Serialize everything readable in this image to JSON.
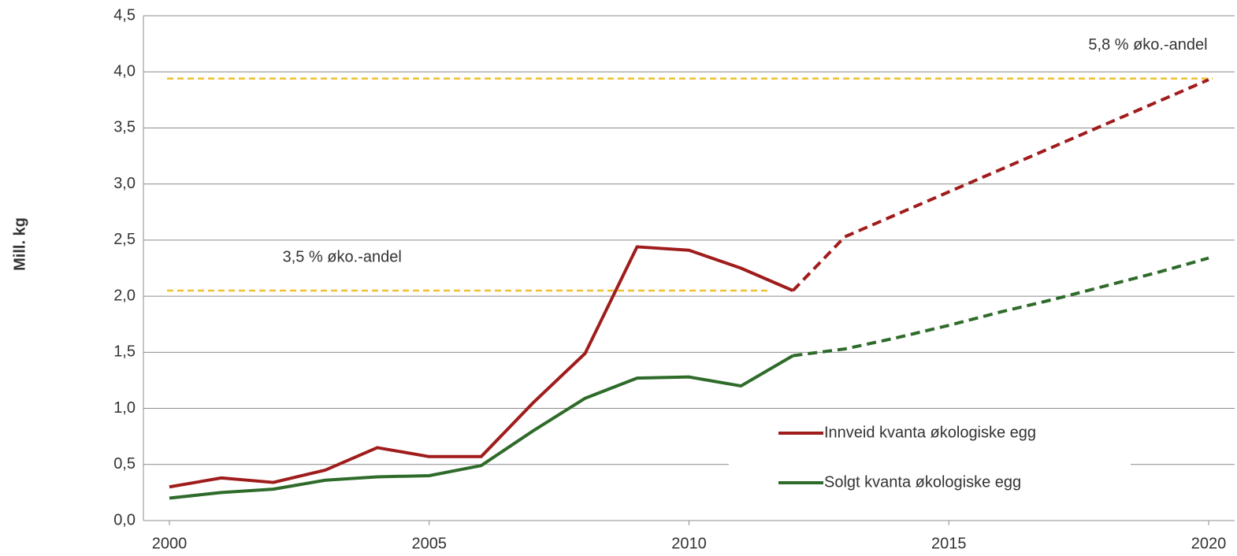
{
  "chart_data": {
    "type": "line",
    "y_label": "Mill. kg",
    "x": [
      2000,
      2001,
      2002,
      2003,
      2004,
      2005,
      2006,
      2007,
      2008,
      2009,
      2010,
      2011,
      2012,
      2013,
      2014,
      2015,
      2016,
      2017,
      2018,
      2019,
      2020
    ],
    "series": [
      {
        "name": "Innveid kvanta økologiske egg",
        "color": "#a01c1c",
        "dashed": false,
        "values": [
          0.3,
          0.38,
          0.34,
          0.45,
          0.65,
          0.57,
          0.57,
          1.05,
          1.49,
          2.44,
          2.41,
          2.25,
          2.05,
          null,
          null,
          null,
          null,
          null,
          null,
          null,
          null
        ]
      },
      {
        "name": "Solgt kvanta økologiske egg",
        "color": "#2e6b2a",
        "dashed": false,
        "values": [
          0.2,
          0.25,
          0.28,
          0.36,
          0.39,
          0.4,
          0.49,
          0.8,
          1.09,
          1.27,
          1.28,
          1.2,
          1.47,
          null,
          null,
          null,
          null,
          null,
          null,
          null,
          null
        ]
      },
      {
        "color": "#a01c1c",
        "dashed": true,
        "values": [
          null,
          null,
          null,
          null,
          null,
          null,
          null,
          null,
          null,
          null,
          null,
          null,
          2.05,
          2.53,
          2.73,
          2.93,
          3.13,
          3.33,
          3.53,
          3.73,
          3.93
        ]
      },
      {
        "color": "#2e6b2a",
        "dashed": true,
        "values": [
          null,
          null,
          null,
          null,
          null,
          null,
          null,
          null,
          null,
          null,
          null,
          null,
          1.47,
          1.53,
          1.63,
          1.74,
          1.86,
          1.97,
          2.09,
          2.21,
          2.34
        ]
      }
    ],
    "reference_lines": [
      {
        "y": 3.94,
        "x": [
          1999.5,
          2020.5
        ],
        "label": "5,8 % øko.-andel",
        "color": "#f0c030"
      },
      {
        "y": 2.05,
        "x": [
          1999.5,
          2012
        ],
        "label": "3,5 % øko.-andel",
        "color": "#f0c030"
      }
    ],
    "xlim": [
      1999.5,
      2020.5
    ],
    "xticks": [
      2000,
      2005,
      2010,
      2015,
      2020
    ],
    "ylim": [
      0,
      4.5
    ],
    "yticks": [
      {
        "value": 0,
        "label": "0,0"
      },
      {
        "value": 0.5,
        "label": "0,5"
      },
      {
        "value": 1,
        "label": "1,0"
      },
      {
        "value": 1.5,
        "label": "1,5"
      },
      {
        "value": 2,
        "label": "2,0"
      },
      {
        "value": 2.5,
        "label": "2,5"
      },
      {
        "value": 3,
        "label": "3,0"
      },
      {
        "value": 3.5,
        "label": "3,5"
      },
      {
        "value": 4,
        "label": "4,0"
      },
      {
        "value": 4.5,
        "label": "4,5"
      }
    ],
    "grid": true,
    "legend": "lower right"
  }
}
